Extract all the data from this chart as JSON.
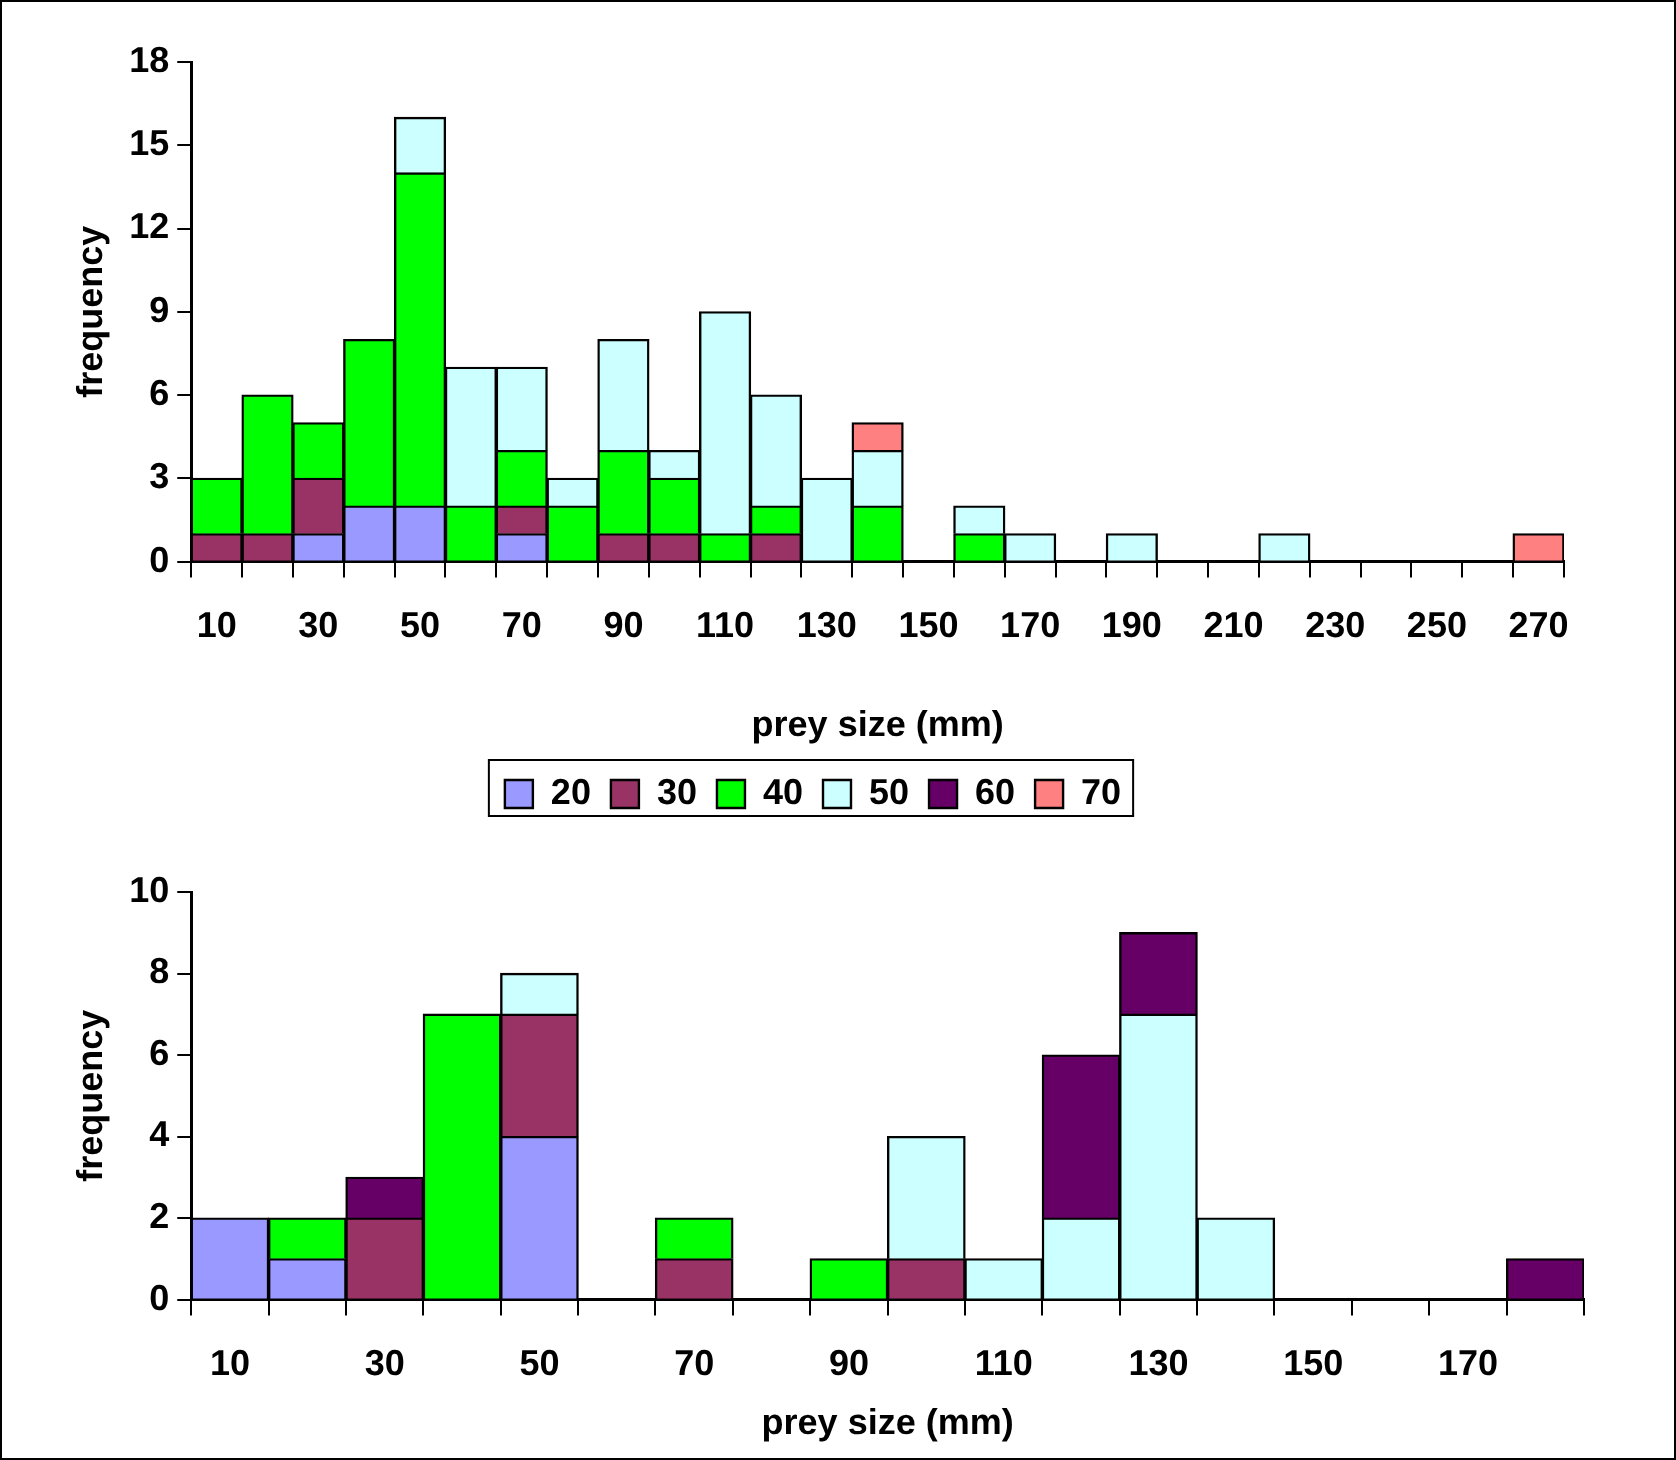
{
  "chart_data": [
    {
      "type": "bar",
      "stacked": true,
      "xlabel": "prey size (mm)",
      "ylabel": "frequency",
      "legend": "bottom",
      "grid": false,
      "ylim": [
        0,
        18
      ],
      "yticks": [
        0,
        3,
        6,
        9,
        12,
        15,
        18
      ],
      "categories": [
        "10",
        null,
        "30",
        null,
        "50",
        null,
        "70",
        null,
        "90",
        null,
        "110",
        null,
        "130",
        null,
        "150",
        null,
        "170",
        null,
        "190",
        null,
        "210",
        null,
        "230",
        null,
        "250",
        null,
        "270"
      ],
      "series": [
        {
          "name": "20",
          "color": "#9999ff",
          "values": [
            0,
            0,
            1,
            2,
            2,
            0,
            1,
            0,
            0,
            0,
            0,
            0,
            0,
            0,
            0,
            0,
            0,
            0,
            0,
            0,
            0,
            0,
            0,
            0,
            0,
            0,
            0
          ]
        },
        {
          "name": "30",
          "color": "#993366",
          "values": [
            1,
            1,
            2,
            0,
            0,
            0,
            1,
            0,
            1,
            1,
            0,
            1,
            0,
            0,
            0,
            0,
            0,
            0,
            0,
            0,
            0,
            0,
            0,
            0,
            0,
            0,
            0
          ]
        },
        {
          "name": "40",
          "color": "#00ff00",
          "values": [
            2,
            5,
            2,
            6,
            12,
            2,
            2,
            2,
            3,
            2,
            1,
            1,
            0,
            2,
            0,
            1,
            0,
            0,
            0,
            0,
            0,
            0,
            0,
            0,
            0,
            0,
            0
          ]
        },
        {
          "name": "50",
          "color": "#ccffff",
          "values": [
            0,
            0,
            0,
            0,
            2,
            5,
            3,
            1,
            4,
            1,
            8,
            4,
            3,
            2,
            0,
            1,
            1,
            0,
            1,
            0,
            0,
            1,
            0,
            0,
            0,
            0,
            0
          ]
        },
        {
          "name": "60",
          "color": "#660066",
          "values": [
            0,
            0,
            0,
            0,
            0,
            0,
            0,
            0,
            0,
            0,
            0,
            0,
            0,
            0,
            0,
            0,
            0,
            0,
            0,
            0,
            0,
            0,
            0,
            0,
            0,
            0,
            0
          ]
        },
        {
          "name": "70",
          "color": "#ff8080",
          "values": [
            0,
            0,
            0,
            0,
            0,
            0,
            0,
            0,
            0,
            0,
            0,
            0,
            0,
            1,
            0,
            0,
            0,
            0,
            0,
            0,
            0,
            0,
            0,
            0,
            0,
            0,
            1
          ]
        }
      ]
    },
    {
      "type": "bar",
      "stacked": true,
      "xlabel": "prey size (mm)",
      "ylabel": "frequency",
      "grid": false,
      "ylim": [
        0,
        10
      ],
      "yticks": [
        0,
        2,
        4,
        6,
        8,
        10
      ],
      "categories": [
        "10",
        null,
        "30",
        null,
        "50",
        null,
        "70",
        null,
        "90",
        null,
        "110",
        null,
        "130",
        null,
        "150",
        null,
        "170",
        null
      ],
      "series": [
        {
          "color": "#9999ff",
          "values": [
            2,
            1,
            0,
            0,
            4,
            0,
            0,
            0,
            0,
            0,
            0,
            0,
            0,
            0,
            0,
            0,
            0,
            0
          ]
        },
        {
          "color": "#993366",
          "values": [
            0,
            0,
            2,
            0,
            3,
            0,
            1,
            0,
            0,
            1,
            0,
            0,
            0,
            0,
            0,
            0,
            0,
            0
          ]
        },
        {
          "color": "#00ff00",
          "values": [
            0,
            1,
            0,
            7,
            0,
            0,
            1,
            0,
            1,
            0,
            0,
            0,
            0,
            0,
            0,
            0,
            0,
            0
          ]
        },
        {
          "color": "#ccffff",
          "values": [
            0,
            0,
            0,
            0,
            1,
            0,
            0,
            0,
            0,
            3,
            1,
            2,
            7,
            2,
            0,
            0,
            0,
            0
          ]
        },
        {
          "color": "#660066",
          "values": [
            0,
            0,
            1,
            0,
            0,
            0,
            0,
            0,
            0,
            0,
            0,
            4,
            2,
            0,
            0,
            0,
            0,
            1
          ]
        },
        {
          "color": "#ff8080",
          "values": [
            0,
            0,
            0,
            0,
            0,
            0,
            0,
            0,
            0,
            0,
            0,
            0,
            0,
            0,
            0,
            0,
            0,
            0
          ]
        }
      ]
    }
  ]
}
